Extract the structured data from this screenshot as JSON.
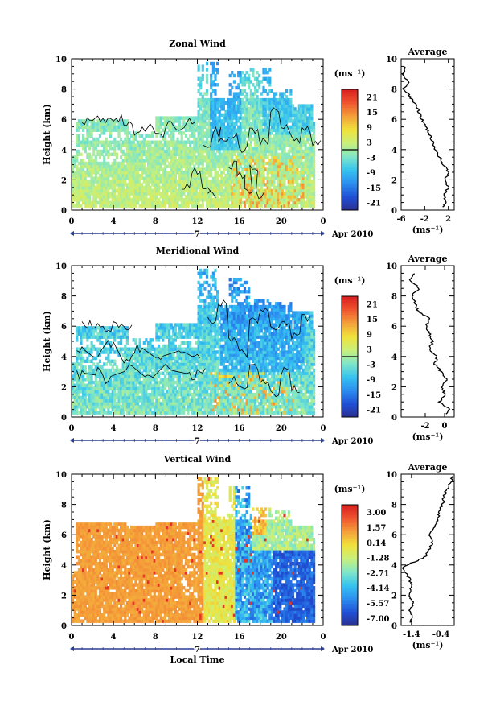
{
  "colors": {
    "page_background": "#ffffff",
    "frame": "#000000",
    "contour": "#000000",
    "colorbar_stops": [
      "#2b2f8f",
      "#1f4fd6",
      "#2c8ef0",
      "#35c3f0",
      "#7fe6c8",
      "#c8f07a",
      "#f0e23a",
      "#f4a13a",
      "#f0562f",
      "#d91f1f"
    ]
  },
  "x_axis": {
    "ticks": [
      "0",
      "4",
      "8",
      "12",
      "16",
      "20",
      "0"
    ],
    "date_label": "7",
    "month_label": "Apr 2010",
    "xlabel": "Local Time"
  },
  "chart_data": [
    {
      "type": "heatmap",
      "title": "Zonal Wind",
      "ylabel": "Height (km)",
      "unit_label": "(ms⁻¹)",
      "y_ticks": [
        "0",
        "2",
        "4",
        "6",
        "8",
        "10"
      ],
      "ylim": [
        0,
        10
      ],
      "xlim": [
        0,
        24
      ],
      "colorbar_ticks": [
        "21",
        "15",
        "9",
        "3",
        "-3",
        "-9",
        "-15",
        "-21"
      ],
      "colorbar_range": [
        -24,
        24
      ],
      "field": "zonal",
      "profile": {
        "title": "Average",
        "x_ticks": [
          "-6",
          "-2",
          "2"
        ],
        "xlabel": "(ms⁻¹)",
        "xlim": [
          -6,
          3
        ],
        "height": [
          0.2,
          0.5,
          1.0,
          1.5,
          2.0,
          2.5,
          3.0,
          3.5,
          4.0,
          4.5,
          5.0,
          5.5,
          6.0,
          6.5,
          7.0,
          7.5,
          8.0,
          8.5,
          9.0,
          9.5
        ],
        "value": [
          1.0,
          1.6,
          1.2,
          2.0,
          1.5,
          2.0,
          1.2,
          0.5,
          -0.3,
          -0.6,
          -1.2,
          -1.8,
          -2.5,
          -3.0,
          -3.6,
          -4.5,
          -5.6,
          -4.8,
          -5.8,
          -5.2
        ]
      }
    },
    {
      "type": "heatmap",
      "title": "Meridional Wind",
      "ylabel": "Height (km)",
      "unit_label": "(ms⁻¹)",
      "y_ticks": [
        "0",
        "2",
        "4",
        "6",
        "8",
        "10"
      ],
      "ylim": [
        0,
        10
      ],
      "xlim": [
        0,
        24
      ],
      "colorbar_ticks": [
        "21",
        "15",
        "9",
        "3",
        "-3",
        "-9",
        "-15",
        "-21"
      ],
      "colorbar_range": [
        -24,
        24
      ],
      "field": "meridional",
      "profile": {
        "title": "Average",
        "x_ticks": [
          "-2",
          "0"
        ],
        "xlabel": "(ms⁻¹)",
        "xlim": [
          -4.5,
          1.0
        ],
        "height": [
          0.2,
          0.5,
          1.0,
          1.5,
          2.0,
          2.5,
          3.0,
          3.5,
          4.0,
          4.5,
          5.0,
          5.5,
          6.0,
          6.5,
          7.0,
          7.5,
          8.0,
          8.5,
          9.0,
          9.5
        ],
        "value": [
          0.2,
          0.5,
          -0.5,
          0.0,
          -0.3,
          0.3,
          -0.4,
          -1.0,
          -0.8,
          -1.6,
          -1.2,
          -1.5,
          -2.0,
          -1.5,
          -2.8,
          -3.0,
          -3.4,
          -2.6,
          -3.6,
          -3.2
        ]
      }
    },
    {
      "type": "heatmap",
      "title": "Vertical Wind",
      "ylabel": "Height (km)",
      "unit_label": "(ms⁻¹)",
      "y_ticks": [
        "0",
        "2",
        "4",
        "6",
        "8",
        "10"
      ],
      "ylim": [
        0,
        10
      ],
      "xlim": [
        0,
        24
      ],
      "colorbar_ticks": [
        "3.00",
        "1.57",
        "0.14",
        "-1.28",
        "-2.71",
        "-4.14",
        "-5.57",
        "-7.00"
      ],
      "colorbar_range": [
        -7.7,
        3.7
      ],
      "field": "vertical",
      "profile": {
        "title": "Average",
        "x_ticks": [
          "-1.4",
          "-0.4"
        ],
        "xlabel": "(ms⁻¹)",
        "xlim": [
          -1.75,
          0.05
        ],
        "height": [
          0.2,
          0.5,
          1.0,
          1.5,
          2.0,
          2.5,
          3.0,
          3.5,
          3.8,
          4.0,
          4.5,
          5.0,
          5.5,
          6.0,
          6.5,
          7.0,
          7.5,
          8.0,
          8.5,
          9.0,
          9.5,
          9.9
        ],
        "value": [
          -1.45,
          -1.35,
          -1.45,
          -1.35,
          -1.5,
          -1.4,
          -1.45,
          -1.6,
          -1.7,
          -1.55,
          -0.95,
          -0.8,
          -0.7,
          -0.8,
          -0.6,
          -0.5,
          -0.45,
          -0.35,
          -0.3,
          -0.2,
          -0.05,
          0.0
        ]
      }
    }
  ]
}
